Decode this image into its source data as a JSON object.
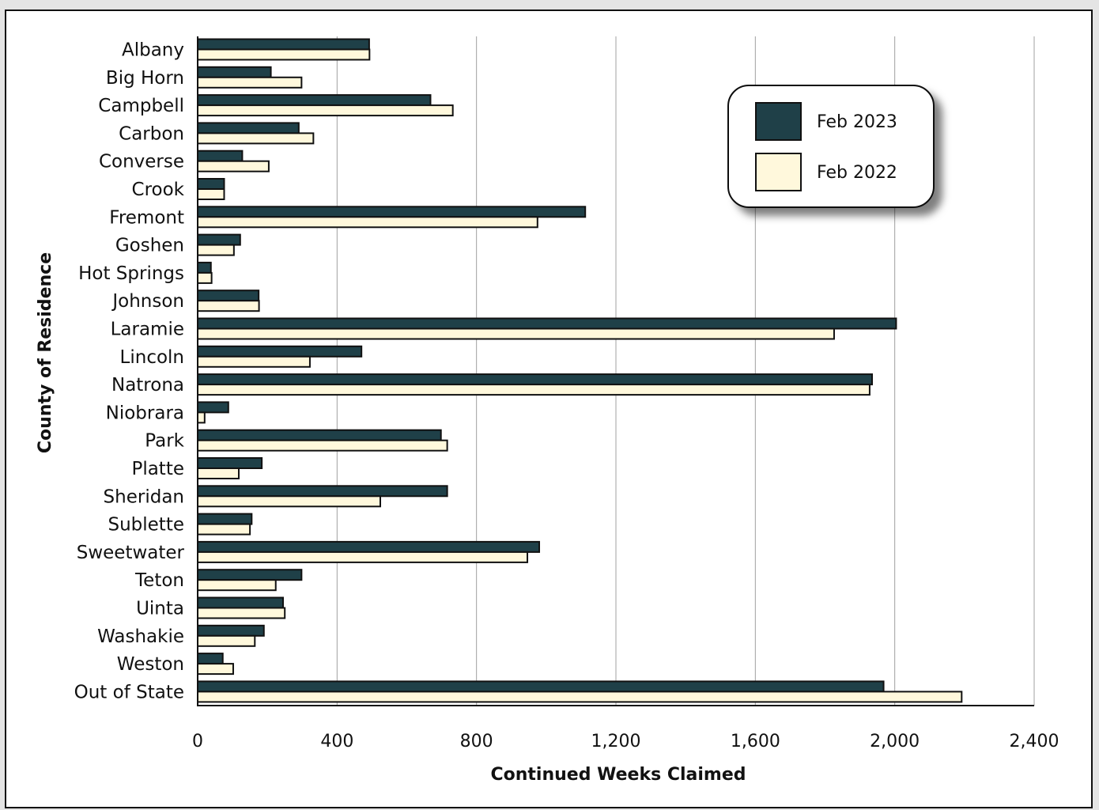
{
  "chart_data": {
    "type": "bar",
    "orientation": "horizontal",
    "title": "",
    "xlabel": "Continued Weeks Claimed",
    "ylabel": "County of Residence",
    "xlim": [
      0,
      2400
    ],
    "xticks": [
      0,
      400,
      800,
      1200,
      1600,
      2000,
      2400
    ],
    "xtick_labels": [
      "0",
      "400",
      "800",
      "1,200",
      "1,600",
      "2,000",
      "2,400"
    ],
    "grid": "vertical gridlines",
    "legend_position": "top-right",
    "categories": [
      "Albany",
      "Big Horn",
      "Campbell",
      "Carbon",
      "Converse",
      "Crook",
      "Fremont",
      "Goshen",
      "Hot Springs",
      "Johnson",
      "Laramie",
      "Lincoln",
      "Natrona",
      "Niobrara",
      "Park",
      "Platte",
      "Sheridan",
      "Sublette",
      "Sweetwater",
      "Teton",
      "Uinta",
      "Washakie",
      "Weston",
      "Out of State"
    ],
    "series": [
      {
        "name": "Feb 2023",
        "color": "#1f4048",
        "values": [
          492,
          210,
          668,
          290,
          128,
          76,
          1112,
          122,
          38,
          175,
          2004,
          470,
          1935,
          88,
          698,
          184,
          716,
          155,
          980,
          298,
          245,
          190,
          72,
          1968
        ]
      },
      {
        "name": "Feb 2022",
        "color": "#fff8dc",
        "values": [
          493,
          298,
          732,
          332,
          204,
          76,
          975,
          104,
          40,
          176,
          1826,
          322,
          1928,
          20,
          716,
          118,
          524,
          150,
          946,
          224,
          250,
          164,
          102,
          2192
        ]
      }
    ]
  }
}
